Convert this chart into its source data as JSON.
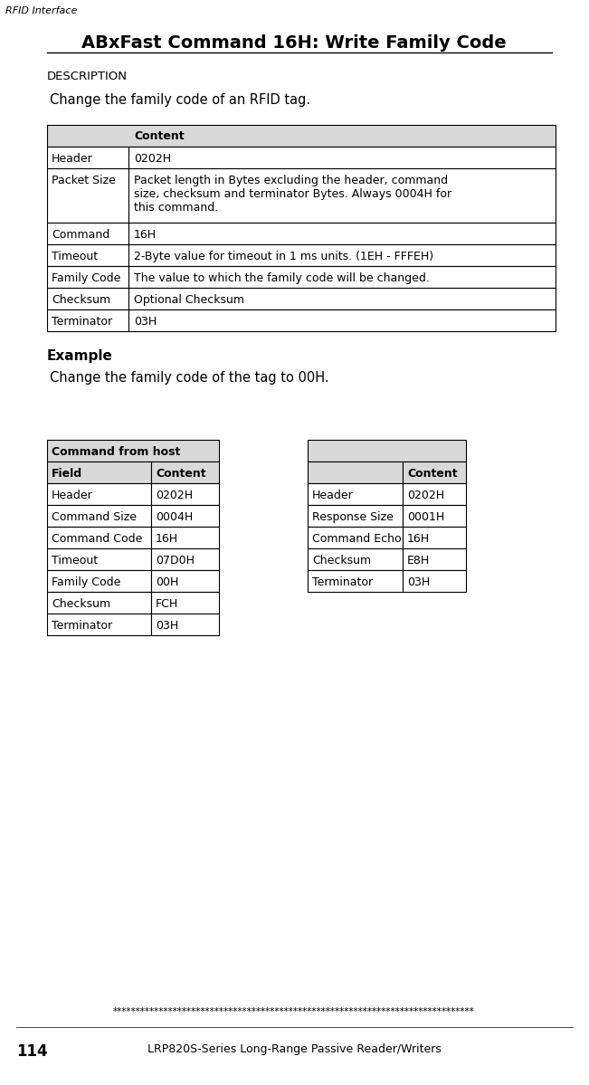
{
  "page_label": "RFID Interface",
  "title": "ABxFast Command 16H: Write Family Code",
  "page_num": "114",
  "footer_text": "LRP820S-Series Long-Range Passive Reader/Writers",
  "stars": "******************************************************************************",
  "description_label": "DESCRIPTION",
  "description_text": "Change the family code of an RFID tag.",
  "example_label": "Example",
  "example_text": "Change the family code of the tag to 00H.",
  "main_table_rows": [
    [
      "Header",
      "0202H"
    ],
    [
      "Packet Size",
      "Packet length in Bytes excluding the header, command\nsize, checksum and terminator Bytes. Always 0004H for\nthis command."
    ],
    [
      "Command",
      "16H"
    ],
    [
      "Timeout",
      "2-Byte value for timeout in 1 ms units. (1EH - FFFEH)"
    ],
    [
      "Family Code",
      "The value to which the family code will be changed."
    ],
    [
      "Checksum",
      "Optional Checksum"
    ],
    [
      "Terminator",
      "03H"
    ]
  ],
  "host_table_title": "Command from host",
  "host_table_header": [
    "Field",
    "Content"
  ],
  "host_table_rows": [
    [
      "Header",
      "0202H"
    ],
    [
      "Command Size",
      "0004H"
    ],
    [
      "Command Code",
      "16H"
    ],
    [
      "Timeout",
      "07D0H"
    ],
    [
      "Family Code",
      "00H"
    ],
    [
      "Checksum",
      "FCH"
    ],
    [
      "Terminator",
      "03H"
    ]
  ],
  "resp_table_rows": [
    [
      "Header",
      "0202H"
    ],
    [
      "Response Size",
      "0001H"
    ],
    [
      "Command Echo",
      "16H"
    ],
    [
      "Checksum",
      "E8H"
    ],
    [
      "Terminator",
      "03H"
    ]
  ],
  "bg_color": "#ffffff",
  "table_header_bg": "#d9d9d9",
  "table_border_color": "#000000"
}
